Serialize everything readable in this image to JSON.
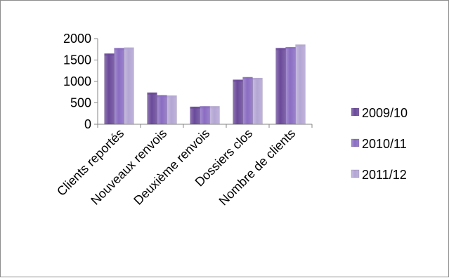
{
  "chart_data": {
    "type": "bar",
    "title": "",
    "xlabel": "",
    "ylabel": "",
    "ylim": [
      0,
      2000
    ],
    "yticks": [
      0,
      500,
      1000,
      1500,
      2000
    ],
    "grid": false,
    "legend_position": "right",
    "categories": [
      "Clients reportés",
      "Nouveaux renvois",
      "Deuxième renvois",
      "Dossiers clos",
      "Nombre de clients"
    ],
    "series": [
      {
        "name": "2009/10",
        "color": "#6a4a9a",
        "values": [
          1650,
          740,
          410,
          1040,
          1780
        ]
      },
      {
        "name": "2010/11",
        "color": "#8a6cc2",
        "values": [
          1780,
          680,
          420,
          1100,
          1800
        ]
      },
      {
        "name": "2011/12",
        "color": "#b4a6d4",
        "values": [
          1790,
          670,
          420,
          1080,
          1860
        ]
      }
    ]
  }
}
